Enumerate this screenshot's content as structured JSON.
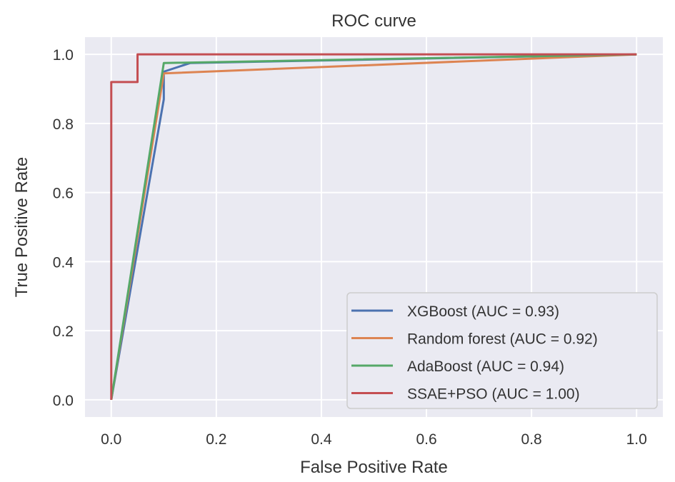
{
  "chart_data": {
    "type": "line",
    "title": "ROC curve",
    "xlabel": "False Positive Rate",
    "ylabel": "True Positive Rate",
    "xlim": [
      -0.05,
      1.05
    ],
    "ylim": [
      -0.05,
      1.05
    ],
    "xticks": [
      0.0,
      0.2,
      0.4,
      0.6,
      0.8,
      1.0
    ],
    "yticks": [
      0.0,
      0.2,
      0.4,
      0.6,
      0.8,
      1.0
    ],
    "xtick_labels": [
      "0.0",
      "0.2",
      "0.4",
      "0.6",
      "0.8",
      "1.0"
    ],
    "ytick_labels": [
      "0.0",
      "0.2",
      "0.4",
      "0.6",
      "0.8",
      "1.0"
    ],
    "grid": true,
    "legend_position": "lower-right",
    "background": "#eaeaf2",
    "series": [
      {
        "name": "XGBoost (AUC = 0.93)",
        "color": "#4c72b0",
        "x": [
          0.0,
          0.1,
          0.1,
          0.15,
          1.0
        ],
        "y": [
          0.0,
          0.87,
          0.95,
          0.975,
          1.0
        ]
      },
      {
        "name": "Random forest (AUC = 0.92)",
        "color": "#dd8452",
        "x": [
          0.0,
          0.1,
          1.0
        ],
        "y": [
          0.0,
          0.945,
          1.0
        ]
      },
      {
        "name": "AdaBoost (AUC = 0.94)",
        "color": "#55a868",
        "x": [
          0.0,
          0.1,
          1.0
        ],
        "y": [
          0.0,
          0.975,
          1.0
        ]
      },
      {
        "name": "SSAE+PSO (AUC = 1.00)",
        "color": "#c44e52",
        "x": [
          0.0,
          0.0,
          0.05,
          0.05,
          1.0
        ],
        "y": [
          0.0,
          0.92,
          0.92,
          1.0,
          1.0
        ]
      }
    ]
  }
}
